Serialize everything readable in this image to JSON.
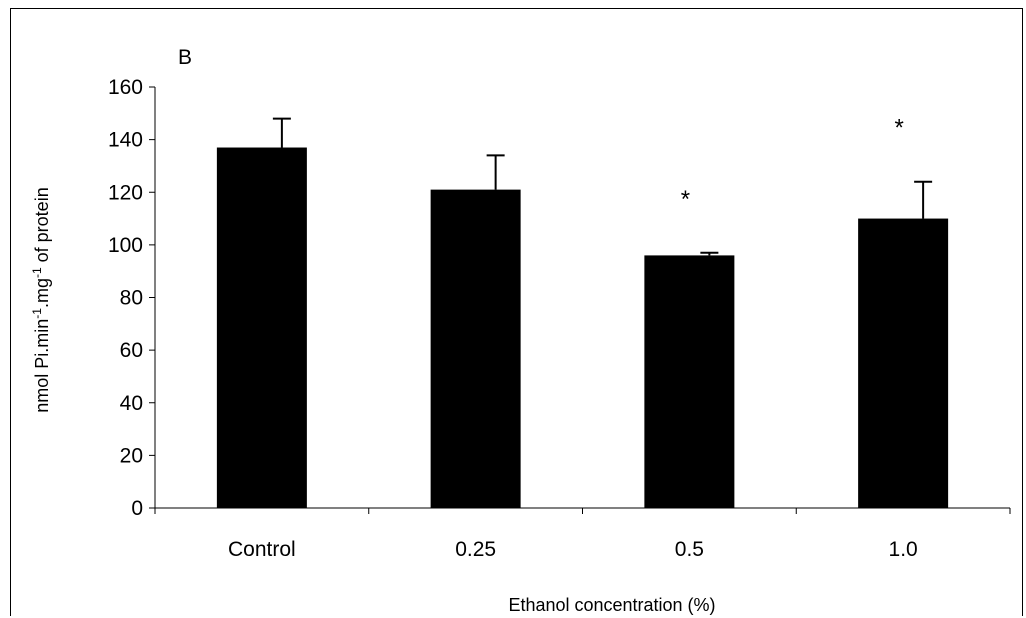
{
  "chart_data": {
    "type": "bar",
    "panel_label": "B",
    "xlabel": "Ethanol concentration (%)",
    "ylabel_parts": [
      "nmol Pi.min",
      "-1",
      ".mg",
      "-1",
      " of protein"
    ],
    "categories": [
      "Control",
      "0.25",
      "0.5",
      "1.0"
    ],
    "values": [
      137,
      121,
      96,
      110
    ],
    "errors": [
      11,
      13,
      1,
      14
    ],
    "significance": [
      "",
      "",
      "*",
      "*"
    ],
    "ylim": [
      0,
      160
    ],
    "yticks": [
      "0",
      "20",
      "40",
      "60",
      "80",
      "100",
      "120",
      "140",
      "160"
    ],
    "grid": false,
    "bar_color": "#000000"
  }
}
